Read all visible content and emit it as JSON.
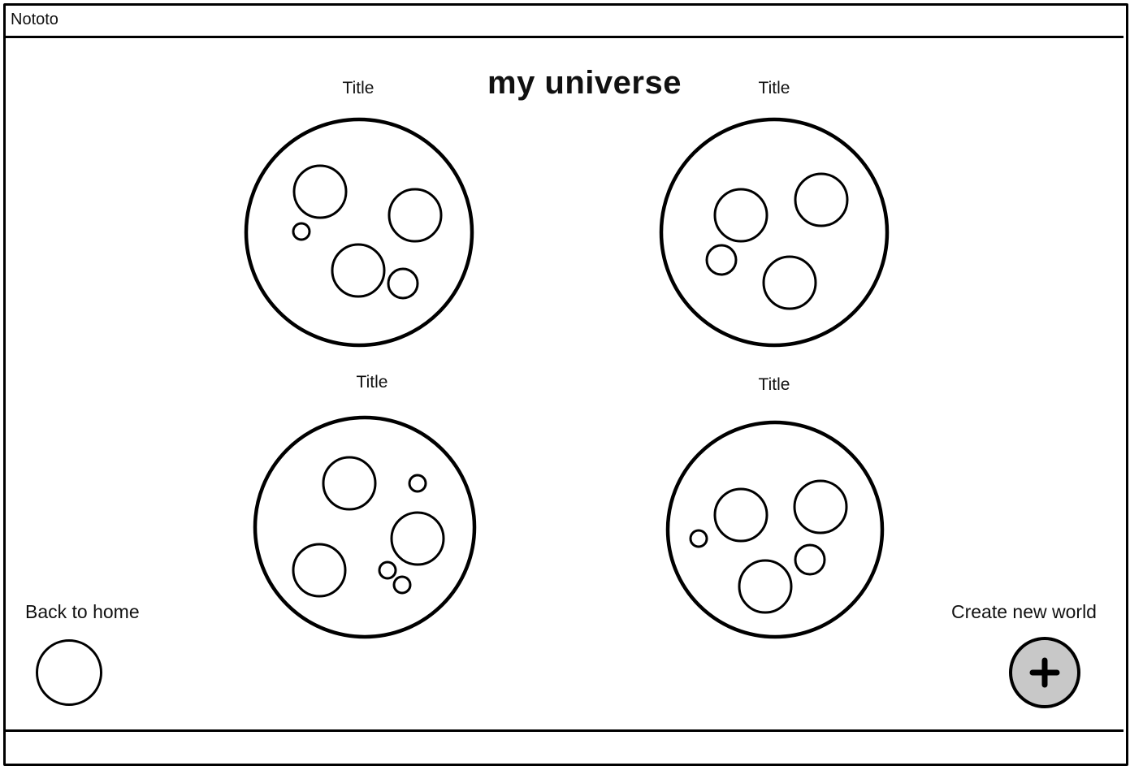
{
  "window": {
    "title": "Nototo"
  },
  "page": {
    "title": "my universe"
  },
  "worlds": [
    {
      "label": "Title"
    },
    {
      "label": "Title"
    },
    {
      "label": "Title"
    },
    {
      "label": "Title"
    }
  ],
  "nav": {
    "back_label": "Back to home",
    "create_label": "Create new world",
    "create_icon": "plus-icon"
  },
  "colors": {
    "stroke": "#000000",
    "create_button_fill": "#c8c8c8",
    "background": "#ffffff"
  }
}
